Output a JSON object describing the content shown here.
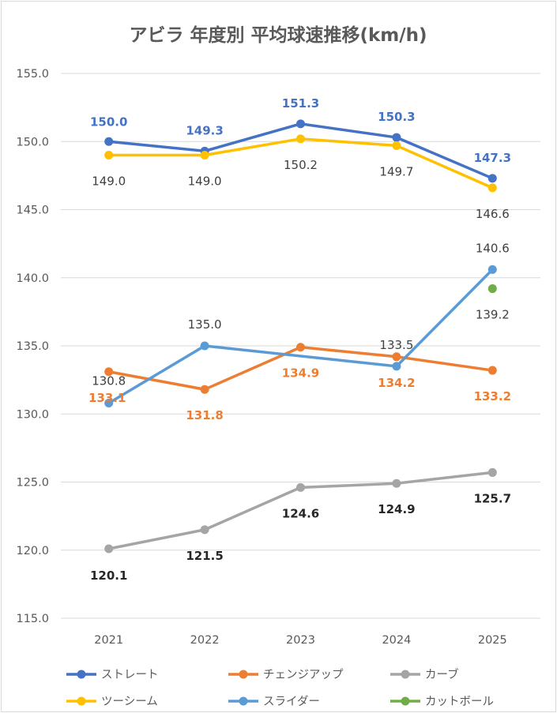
{
  "chart_data": {
    "type": "line",
    "title": "アビラ 年度別 平均球速推移(km/h)",
    "categories": [
      "2021",
      "2022",
      "2023",
      "2024",
      "2025"
    ],
    "ylim": [
      115,
      155
    ],
    "yticks": [
      "115.0",
      "120.0",
      "125.0",
      "130.0",
      "135.0",
      "140.0",
      "145.0",
      "150.0",
      "155.0"
    ],
    "grid": true,
    "legend_position": "bottom",
    "series": [
      {
        "name": "ストレート",
        "color": "#4472C4",
        "values": [
          150.0,
          149.3,
          151.3,
          150.3,
          147.3
        ],
        "labels": [
          "150.0",
          "149.3",
          "151.3",
          "150.3",
          "147.3"
        ],
        "label_bold": true,
        "label_color": "#4472C4"
      },
      {
        "name": "チェンジアップ",
        "color": "#ED7D31",
        "values": [
          133.1,
          131.8,
          134.9,
          134.2,
          133.2
        ],
        "labels": [
          "133.1",
          "131.8",
          "134.9",
          "134.2",
          "133.2"
        ],
        "label_bold": true,
        "label_color": "#ED7D31"
      },
      {
        "name": "カーブ",
        "color": "#A5A5A5",
        "values": [
          120.1,
          121.5,
          124.6,
          124.9,
          125.7
        ],
        "labels": [
          "120.1",
          "121.5",
          "124.6",
          "124.9",
          "125.7"
        ],
        "label_bold": true,
        "label_color": "#262626"
      },
      {
        "name": "ツーシーム",
        "color": "#FFC000",
        "values": [
          149.0,
          149.0,
          150.2,
          149.7,
          146.6
        ],
        "labels": [
          "149.0",
          "149.0",
          "150.2",
          "149.7",
          "146.6"
        ],
        "label_bold": false,
        "label_color": "#404040"
      },
      {
        "name": "スライダー",
        "color": "#5B9BD5",
        "values": [
          130.8,
          135.0,
          null,
          133.5,
          140.6
        ],
        "labels": [
          "130.8",
          "135.0",
          "",
          "133.5",
          "140.6"
        ],
        "label_bold": false,
        "label_color": "#404040"
      },
      {
        "name": "カットボール",
        "color": "#70AD47",
        "values": [
          null,
          null,
          null,
          null,
          139.2
        ],
        "labels": [
          "",
          "",
          "",
          "",
          "139.2"
        ],
        "label_bold": false,
        "label_color": "#404040"
      }
    ]
  }
}
